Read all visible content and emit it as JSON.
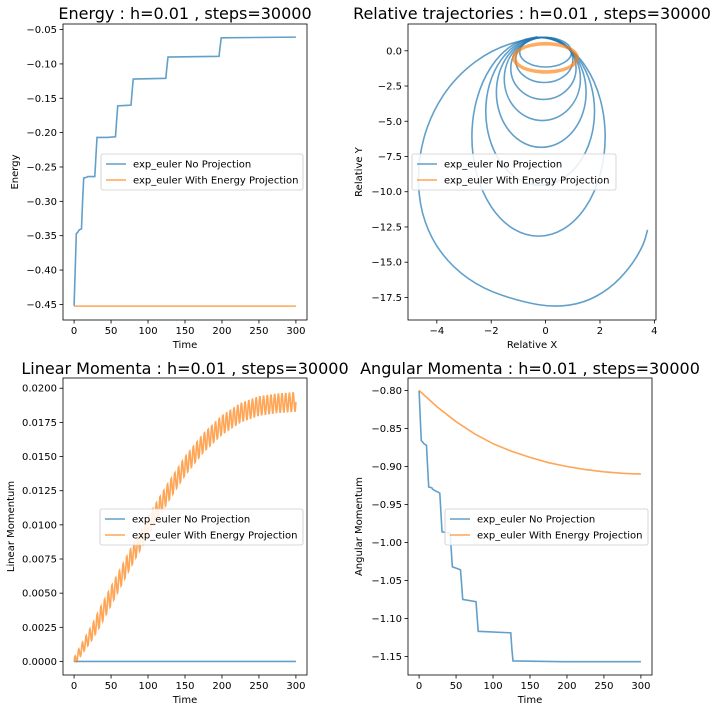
{
  "colors": {
    "no_projection": "#1f77b4",
    "energy_projection": "#ff7f0e"
  },
  "chart_data": [
    {
      "type": "line",
      "title": "Energy : h=0.01 , steps=30000",
      "xlabel": "Time",
      "ylabel": "Energy",
      "xlim": [
        -15,
        315
      ],
      "ylim": [
        -0.4727,
        -0.0419
      ],
      "xticks": [
        0,
        50,
        100,
        150,
        200,
        250,
        300
      ],
      "xtick_labels": [
        "0",
        "50",
        "100",
        "150",
        "200",
        "250",
        "300"
      ],
      "yticks": [
        -0.45,
        -0.4,
        -0.35,
        -0.3,
        -0.25,
        -0.2,
        -0.15,
        -0.1,
        -0.05
      ],
      "ytick_labels": [
        "−0.45",
        "−0.40",
        "−0.35",
        "−0.30",
        "−0.25",
        "−0.20",
        "−0.15",
        "−0.10",
        "−0.05"
      ],
      "legend": {
        "location": "center-right",
        "entries": [
          "exp_euler No Projection",
          "exp_euler With Energy Projection"
        ]
      },
      "series": [
        {
          "name": "exp_euler No Projection",
          "color": "#1f77b4",
          "x": [
            0,
            1.5,
            3,
            5,
            6.5,
            8,
            10,
            11.5,
            13,
            17,
            18.5,
            20,
            28,
            29.5,
            31,
            42,
            43.5,
            45,
            56,
            57.5,
            59,
            77,
            78.5,
            80,
            124,
            125.5,
            127,
            196,
            197.5,
            199,
            300
          ],
          "y": [
            -0.452,
            -0.4,
            -0.347,
            -0.345,
            -0.342,
            -0.341,
            -0.34,
            -0.3,
            -0.266,
            -0.265,
            -0.264,
            -0.264,
            -0.264,
            -0.235,
            -0.207,
            -0.207,
            -0.207,
            -0.207,
            -0.206,
            -0.183,
            -0.161,
            -0.16,
            -0.14,
            -0.122,
            -0.121,
            -0.105,
            -0.09,
            -0.089,
            -0.075,
            -0.062,
            -0.061
          ]
        },
        {
          "name": "exp_euler With Energy Projection",
          "color": "#ff7f0e",
          "x": [
            0,
            300
          ],
          "y": [
            -0.4525,
            -0.4525
          ]
        }
      ]
    },
    {
      "type": "line",
      "title": "Relative trajectories : h=0.01 , steps=30000",
      "xlabel": "Relative X",
      "ylabel": "Relative Y",
      "xlim": [
        -5.06,
        4.06
      ],
      "ylim": [
        -19.1,
        1.9
      ],
      "xticks": [
        -4,
        -2,
        0,
        2,
        4
      ],
      "xtick_labels": [
        "−4",
        "−2",
        "0",
        "2",
        "4"
      ],
      "yticks": [
        -17.5,
        -15,
        -12.5,
        -10,
        -7.5,
        -5,
        -2.5,
        0
      ],
      "ytick_labels": [
        "−17.5",
        "−15.0",
        "−12.5",
        "−10.0",
        "−7.5",
        "−5.0",
        "−2.5",
        "0.0"
      ],
      "legend": {
        "location": "center-left",
        "entries": [
          "exp_euler No Projection",
          "exp_euler With Energy Projection"
        ]
      },
      "series": [
        {
          "name": "exp_euler No Projection",
          "color": "#1f77b4",
          "orbits": [
            {
              "cx": 0.0,
              "cy": -0.1,
              "rx": 0.95,
              "ry": 1.05
            },
            {
              "cx": -0.05,
              "cy": -0.65,
              "rx": 1.05,
              "ry": 1.6
            },
            {
              "cx": -0.08,
              "cy": -1.25,
              "rx": 1.2,
              "ry": 2.2
            },
            {
              "cx": -0.12,
              "cy": -2.0,
              "rx": 1.4,
              "ry": 2.95
            },
            {
              "cx": -0.16,
              "cy": -2.95,
              "rx": 1.65,
              "ry": 3.9
            },
            {
              "cx": -0.2,
              "cy": -4.3,
              "rx": 2.0,
              "ry": 5.25
            },
            {
              "cx": -0.26,
              "cy": -6.1,
              "rx": 2.45,
              "ry": 7.05
            }
          ],
          "outer_x": [
            -0.3,
            -1.9,
            -3.3,
            -4.25,
            -4.7,
            -4.65,
            -4.2,
            -3.4,
            -2.3,
            -0.9,
            0.3,
            1.4,
            2.35,
            3.1,
            3.6,
            3.75
          ],
          "outer_y": [
            1.0,
            0.2,
            -1.8,
            -4.6,
            -7.8,
            -10.9,
            -13.4,
            -15.4,
            -16.9,
            -17.8,
            -18.2,
            -17.9,
            -16.9,
            -15.4,
            -13.8,
            -12.7
          ]
        },
        {
          "name": "exp_euler With Energy Projection",
          "color": "#ff7f0e",
          "ring": {
            "cx": 0.0,
            "cy": -0.5,
            "rx": 1.15,
            "ry": 1.0,
            "turns": 22
          }
        }
      ]
    },
    {
      "type": "line",
      "title": "Linear Momenta : h=0.01 , steps=30000",
      "xlabel": "Time",
      "ylabel": "Linear Momentum",
      "xlim": [
        -15,
        315
      ],
      "ylim": [
        -0.00099,
        0.02075
      ],
      "xticks": [
        0,
        50,
        100,
        150,
        200,
        250,
        300
      ],
      "xtick_labels": [
        "0",
        "50",
        "100",
        "150",
        "200",
        "250",
        "300"
      ],
      "yticks": [
        0,
        0.0025,
        0.005,
        0.0075,
        0.01,
        0.0125,
        0.015,
        0.0175,
        0.02
      ],
      "ytick_labels": [
        "0.0000",
        "0.0025",
        "0.0050",
        "0.0075",
        "0.0100",
        "0.0125",
        "0.0150",
        "0.0175",
        "0.0200"
      ],
      "legend": {
        "location": "center-right",
        "entries": [
          "exp_euler No Projection",
          "exp_euler With Energy Projection"
        ]
      },
      "series": [
        {
          "name": "exp_euler No Projection",
          "color": "#1f77b4",
          "x": [
            0,
            300
          ],
          "y": [
            0.0,
            0.0
          ]
        },
        {
          "name": "exp_euler With Energy Projection",
          "color": "#ff7f0e",
          "trend_x": [
            0,
            25,
            50,
            75,
            100,
            125,
            150,
            175,
            200,
            225,
            250,
            275,
            300
          ],
          "trend_y": [
            0.0,
            0.0022,
            0.0048,
            0.0074,
            0.0099,
            0.0122,
            0.0143,
            0.016,
            0.0173,
            0.0182,
            0.0187,
            0.0189,
            0.019
          ],
          "oscillation_amplitude": 0.0007,
          "oscillation_period": 5
        }
      ]
    },
    {
      "type": "line",
      "title": "Angular Momenta : h=0.01 , steps=30000",
      "xlabel": "Time",
      "ylabel": "Angular Momentum",
      "xlim": [
        -15,
        315
      ],
      "ylim": [
        -1.1745,
        -0.7835
      ],
      "xticks": [
        0,
        50,
        100,
        150,
        200,
        250,
        300
      ],
      "xtick_labels": [
        "0",
        "50",
        "100",
        "150",
        "200",
        "250",
        "300"
      ],
      "yticks": [
        -1.15,
        -1.1,
        -1.05,
        -1.0,
        -0.95,
        -0.9,
        -0.85,
        -0.8
      ],
      "ytick_labels": [
        "−1.15",
        "−1.10",
        "−1.05",
        "−1.00",
        "−0.95",
        "−0.90",
        "−0.85",
        "−0.80"
      ],
      "legend": {
        "location": "center-right",
        "entries": [
          "exp_euler No Projection",
          "exp_euler With Energy Projection"
        ]
      },
      "series": [
        {
          "name": "exp_euler No Projection",
          "color": "#1f77b4",
          "x": [
            0,
            1.5,
            3,
            5,
            6.5,
            8,
            10,
            11.5,
            13,
            17,
            18.5,
            20,
            28,
            29.5,
            31,
            42,
            43.5,
            45,
            56,
            57.5,
            59,
            77,
            78.5,
            80,
            124,
            125.5,
            127,
            196,
            197.5,
            199,
            300
          ],
          "y": [
            -0.8,
            -0.835,
            -0.866,
            -0.868,
            -0.87,
            -0.871,
            -0.872,
            -0.9,
            -0.927,
            -0.928,
            -0.93,
            -0.931,
            -0.935,
            -0.96,
            -0.986,
            -0.988,
            -1.01,
            -1.032,
            -1.036,
            -1.055,
            -1.075,
            -1.078,
            -1.098,
            -1.117,
            -1.119,
            -1.14,
            -1.156,
            -1.157,
            -1.157,
            -1.157,
            -1.157
          ]
        },
        {
          "name": "exp_euler With Energy Projection",
          "color": "#ff7f0e",
          "x": [
            0,
            25,
            50,
            75,
            100,
            125,
            150,
            175,
            200,
            225,
            250,
            275,
            300
          ],
          "y": [
            -0.8,
            -0.822,
            -0.841,
            -0.857,
            -0.87,
            -0.88,
            -0.888,
            -0.895,
            -0.9,
            -0.904,
            -0.907,
            -0.909,
            -0.91
          ]
        }
      ]
    }
  ]
}
